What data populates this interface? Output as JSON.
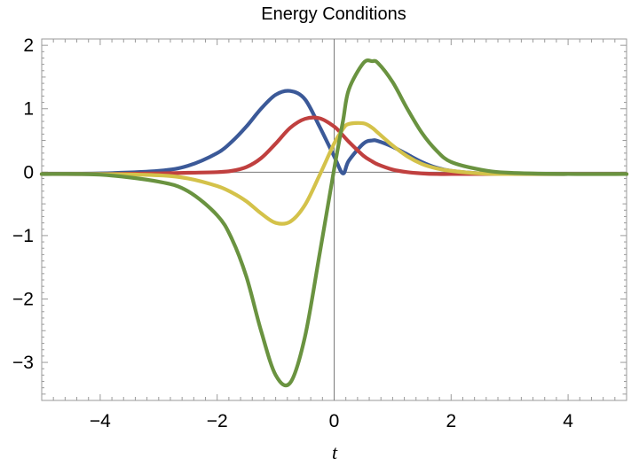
{
  "chart_data": {
    "type": "line",
    "title": "Energy Conditions",
    "xlabel": "t",
    "ylabel": "",
    "xlim": [
      -5,
      5
    ],
    "ylim": [
      -3.6,
      2.1
    ],
    "x_major_ticks": [
      -4,
      -2,
      0,
      2,
      4
    ],
    "x_tick_labels": [
      "−4",
      "−2",
      "0",
      "2",
      "4"
    ],
    "y_major_ticks": [
      -3,
      -2,
      -1,
      0,
      1,
      2
    ],
    "y_tick_labels": [
      "−3",
      "−2",
      "−1",
      "0",
      "1",
      "2"
    ],
    "grid": false,
    "legend": "none",
    "x": [
      -5,
      -4,
      -3,
      -2.5,
      -2,
      -1.75,
      -1.5,
      -1.25,
      -1,
      -0.75,
      -0.5,
      -0.25,
      0,
      0.15,
      0.25,
      0.5,
      0.65,
      0.75,
      1,
      1.25,
      1.5,
      1.75,
      2,
      2.5,
      3,
      4,
      5
    ],
    "series": [
      {
        "color": "#3b5998",
        "values": [
          -0.03,
          -0.02,
          0.02,
          0.1,
          0.3,
          0.48,
          0.72,
          1.0,
          1.22,
          1.28,
          1.15,
          0.72,
          0.25,
          -0.02,
          0.18,
          0.45,
          0.5,
          0.49,
          0.4,
          0.28,
          0.16,
          0.07,
          0.02,
          -0.02,
          -0.03,
          -0.03,
          -0.03
        ]
      },
      {
        "color": "#c0403f",
        "values": [
          -0.03,
          -0.03,
          -0.02,
          -0.01,
          0.0,
          0.02,
          0.08,
          0.22,
          0.45,
          0.7,
          0.84,
          0.85,
          0.72,
          0.58,
          0.48,
          0.26,
          0.17,
          0.12,
          0.04,
          0.0,
          -0.02,
          -0.03,
          -0.03,
          -0.03,
          -0.03,
          -0.03,
          -0.03
        ]
      },
      {
        "color": "#d4c24a",
        "values": [
          -0.03,
          -0.03,
          -0.05,
          -0.1,
          -0.22,
          -0.32,
          -0.46,
          -0.65,
          -0.8,
          -0.78,
          -0.52,
          -0.05,
          0.45,
          0.68,
          0.76,
          0.77,
          0.7,
          0.62,
          0.42,
          0.25,
          0.13,
          0.06,
          0.02,
          -0.02,
          -0.03,
          -0.03,
          -0.03
        ]
      },
      {
        "color": "#6a9340",
        "values": [
          -0.03,
          -0.04,
          -0.15,
          -0.3,
          -0.68,
          -1.05,
          -1.65,
          -2.5,
          -3.2,
          -3.32,
          -2.6,
          -1.3,
          0.05,
          0.8,
          1.3,
          1.72,
          1.75,
          1.72,
          1.42,
          1.0,
          0.62,
          0.34,
          0.16,
          0.04,
          -0.01,
          -0.03,
          -0.03
        ]
      }
    ]
  }
}
